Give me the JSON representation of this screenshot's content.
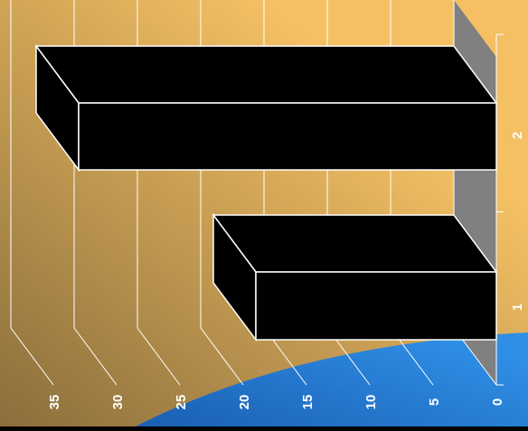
{
  "chart_data": {
    "type": "bar",
    "orientation": "horizontal-3d",
    "categories": [
      "1",
      "2"
    ],
    "values": [
      19,
      33
    ],
    "xlim": [
      0,
      35
    ],
    "x_ticks": [
      0,
      5,
      10,
      15,
      20,
      25,
      30,
      35
    ],
    "title": "",
    "xlabel": "",
    "ylabel": "",
    "grid": true,
    "legend": "none",
    "colors": {
      "bar": "#000000",
      "bar_edge": "#ffffff",
      "side_wall": "#808080",
      "grid": "#ffffff",
      "bg_dark": "#8a6e3c",
      "bg_light": "#f4c063",
      "swoosh": "#2f8fe6",
      "swoosh_dark": "#1a5fb3"
    }
  }
}
